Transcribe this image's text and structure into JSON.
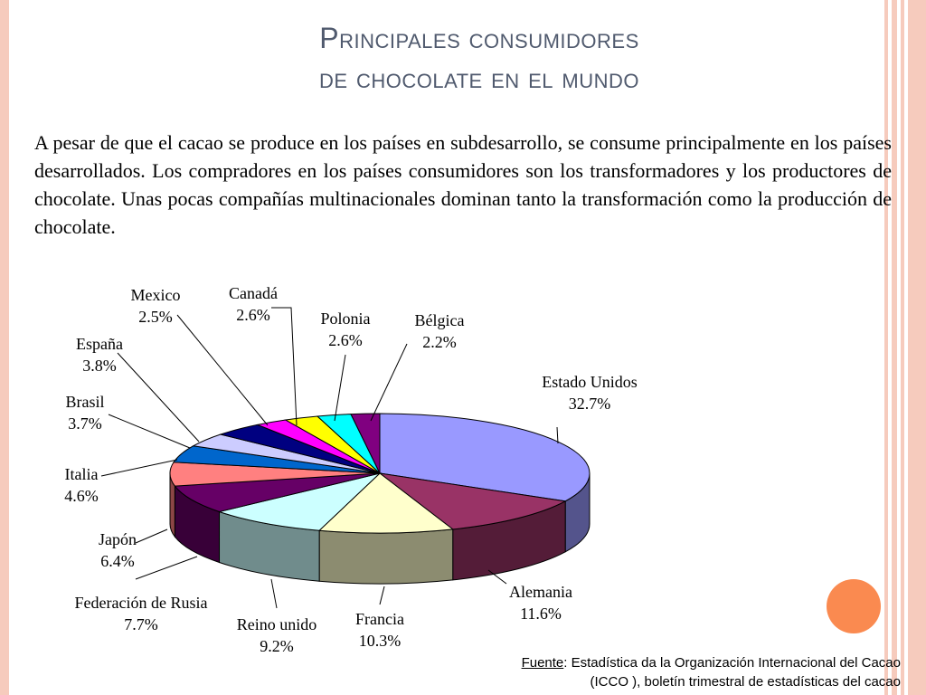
{
  "slide": {
    "title_line1": "Principales consumidores",
    "title_line2": "de chocolate en el mundo",
    "body": "A pesar de que el cacao se produce en los países en subdesarrollo, se consume principalmente en los países desarrollados. Los compradores en los países consumidores son los transformadores y los productores de chocolate. Unas pocas compañías multinacionales dominan tanto la transformación como la producción de chocolate.",
    "source_label": "Fuente",
    "source_line1": ": Estadística da la Organización Internacional del Cacao",
    "source_line2": "(ICCO ), boletín trimestral de estadísticas del cacao"
  },
  "colors": {
    "accent_bar": "#f6cbbd",
    "title": "#505a6e",
    "circle": "#fa8a50"
  },
  "chart_data": {
    "type": "pie",
    "style": "3d",
    "series": [
      {
        "label": "Estado Unidos",
        "value": 32.7,
        "value_label": "32.7%",
        "color": "#9999ff"
      },
      {
        "label": "Alemania",
        "value": 11.6,
        "value_label": "11.6%",
        "color": "#993366"
      },
      {
        "label": "Francia",
        "value": 10.3,
        "value_label": "10.3%",
        "color": "#ffffcc"
      },
      {
        "label": "Reino unido",
        "value": 9.2,
        "value_label": "9.2%",
        "color": "#ccffff"
      },
      {
        "label": "Federación de Rusia",
        "value": 7.7,
        "value_label": "7.7%",
        "color": "#660066"
      },
      {
        "label": "Japón",
        "value": 6.4,
        "value_label": "6.4%",
        "color": "#ff8080"
      },
      {
        "label": "Italia",
        "value": 4.6,
        "value_label": "4.6%",
        "color": "#0066cc"
      },
      {
        "label": "Brasil",
        "value": 3.7,
        "value_label": "3.7%",
        "color": "#ccccff"
      },
      {
        "label": "España",
        "value": 3.8,
        "value_label": "3.8%",
        "color": "#000080"
      },
      {
        "label": "Mexico",
        "value": 2.5,
        "value_label": "2.5%",
        "color": "#ff00ff"
      },
      {
        "label": "Canadá",
        "value": 2.6,
        "value_label": "2.6%",
        "color": "#ffff00"
      },
      {
        "label": "Polonia",
        "value": 2.6,
        "value_label": "2.6%",
        "color": "#00ffff"
      },
      {
        "label": "Bélgica",
        "value": 2.2,
        "value_label": "2.2%",
        "color": "#800080"
      }
    ]
  }
}
